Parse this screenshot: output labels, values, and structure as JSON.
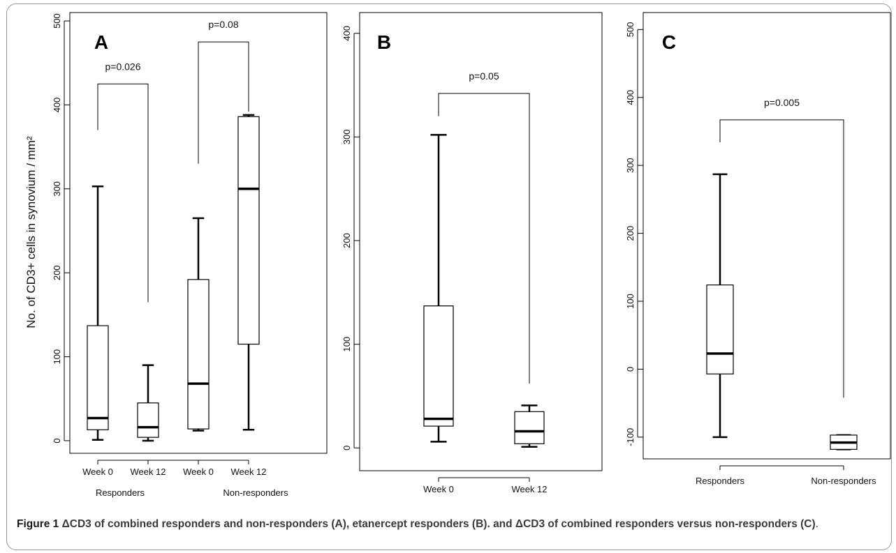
{
  "chart_data": [
    {
      "panel_label": "A",
      "type": "box",
      "ylabel": "No. of CD3+ cells in synovium / mm²",
      "ylim": [
        -15,
        510
      ],
      "yticks": [
        0,
        100,
        200,
        300,
        400,
        500
      ],
      "categories": [
        "Week 0",
        "Week 12",
        "Week 0",
        "Week 12"
      ],
      "group_labels": [
        {
          "label": "Responders",
          "spans": [
            0,
            1
          ]
        },
        {
          "label": "Non-responders",
          "spans": [
            2,
            3
          ]
        }
      ],
      "boxes": [
        {
          "min": 1,
          "q1": 13,
          "median": 27,
          "q3": 137,
          "max": 303
        },
        {
          "min": 0,
          "q1": 4,
          "median": 16,
          "q3": 45,
          "max": 90
        },
        {
          "min": 12,
          "q1": 14,
          "median": 68,
          "q3": 192,
          "max": 265
        },
        {
          "min": 13,
          "q1": 115,
          "median": 300,
          "q3": 386,
          "max": 388
        }
      ],
      "comparisons": [
        {
          "label": "p=0.026",
          "from": 0,
          "to": 1,
          "bracket_y": 425,
          "left_drop": 370,
          "right_drop": 165
        },
        {
          "label": "p=0.08",
          "from": 2,
          "to": 3,
          "bracket_y": 475,
          "left_drop": 330,
          "right_drop": 392
        }
      ]
    },
    {
      "panel_label": "B",
      "type": "box",
      "ylim": [
        -22,
        420
      ],
      "yticks": [
        0,
        100,
        200,
        300,
        400
      ],
      "categories": [
        "Week 0",
        "Week 12"
      ],
      "boxes": [
        {
          "min": 6,
          "q1": 21,
          "median": 28,
          "q3": 137,
          "max": 302
        },
        {
          "min": 1,
          "q1": 4,
          "median": 16,
          "q3": 35,
          "max": 41
        }
      ],
      "comparisons": [
        {
          "label": "p=0.05",
          "from": 0,
          "to": 1,
          "bracket_y": 342,
          "left_drop": 320,
          "right_drop": 62
        }
      ]
    },
    {
      "panel_label": "C",
      "type": "box",
      "ylim": [
        -132,
        525
      ],
      "yticks": [
        -100,
        0,
        100,
        200,
        300,
        400,
        500
      ],
      "categories": [
        "Responders",
        "Non-responders"
      ],
      "boxes": [
        {
          "min": -100,
          "q1": -7,
          "median": 23,
          "q3": 124,
          "max": 287
        },
        {
          "min": -118,
          "q1": -118,
          "median": -108,
          "q3": -97,
          "max": -97
        }
      ],
      "comparisons": [
        {
          "label": "p=0.005",
          "from": 0,
          "to": 1,
          "bracket_y": 367,
          "left_drop": 334,
          "right_drop": -42
        }
      ]
    }
  ],
  "caption": {
    "label": "Figure 1",
    "text": "ΔCD3 of combined responders and non-responders (A), etanercept responders (B). and ΔCD3 of combined responders versus non-responders (C)",
    "end": "."
  }
}
